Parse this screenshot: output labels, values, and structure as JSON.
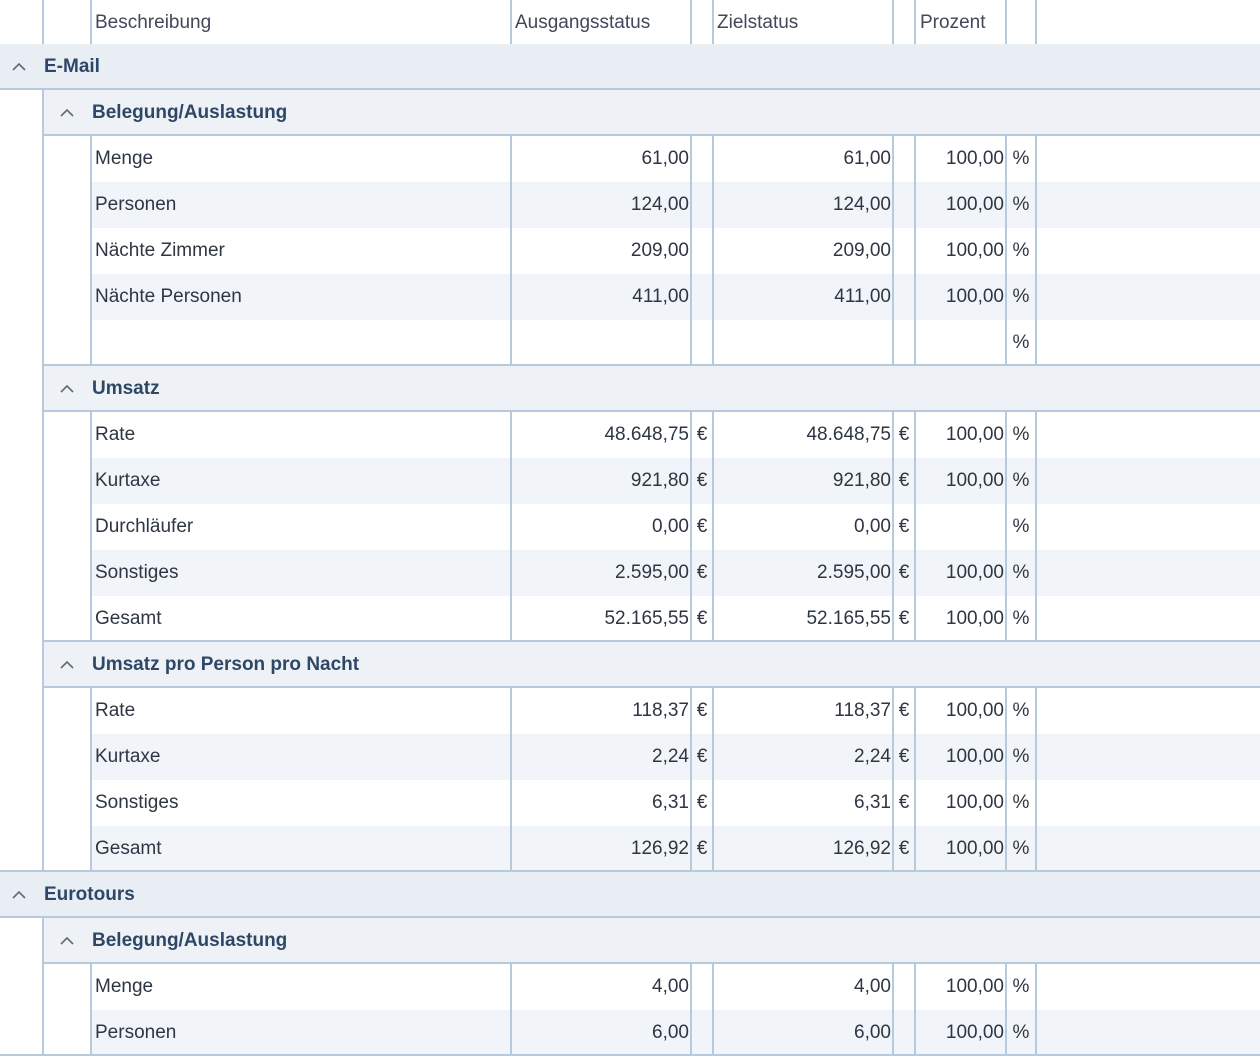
{
  "header": {
    "col_desc": "Beschreibung",
    "col_start": "Ausgangsstatus",
    "col_target": "Zielstatus",
    "col_percent": "Prozent"
  },
  "groups": [
    {
      "label": "E-Mail",
      "subgroups": [
        {
          "label": "Belegung/Auslastung",
          "rows": [
            {
              "desc": "Menge",
              "start": "61,00",
              "start_unit": "",
              "target": "61,00",
              "target_unit": "",
              "pct": "100,00",
              "pct_unit": "%"
            },
            {
              "desc": "Personen",
              "start": "124,00",
              "start_unit": "",
              "target": "124,00",
              "target_unit": "",
              "pct": "100,00",
              "pct_unit": "%"
            },
            {
              "desc": "Nächte Zimmer",
              "start": "209,00",
              "start_unit": "",
              "target": "209,00",
              "target_unit": "",
              "pct": "100,00",
              "pct_unit": "%"
            },
            {
              "desc": "Nächte Personen",
              "start": "411,00",
              "start_unit": "",
              "target": "411,00",
              "target_unit": "",
              "pct": "100,00",
              "pct_unit": "%"
            },
            {
              "desc": "",
              "start": "",
              "start_unit": "",
              "target": "",
              "target_unit": "",
              "pct": "",
              "pct_unit": "%"
            }
          ]
        },
        {
          "label": "Umsatz",
          "rows": [
            {
              "desc": "Rate",
              "start": "48.648,75",
              "start_unit": "€",
              "target": "48.648,75",
              "target_unit": "€",
              "pct": "100,00",
              "pct_unit": "%"
            },
            {
              "desc": "Kurtaxe",
              "start": "921,80",
              "start_unit": "€",
              "target": "921,80",
              "target_unit": "€",
              "pct": "100,00",
              "pct_unit": "%"
            },
            {
              "desc": "Durchläufer",
              "start": "0,00",
              "start_unit": "€",
              "target": "0,00",
              "target_unit": "€",
              "pct": "",
              "pct_unit": "%"
            },
            {
              "desc": "Sonstiges",
              "start": "2.595,00",
              "start_unit": "€",
              "target": "2.595,00",
              "target_unit": "€",
              "pct": "100,00",
              "pct_unit": "%"
            },
            {
              "desc": "Gesamt",
              "start": "52.165,55",
              "start_unit": "€",
              "target": "52.165,55",
              "target_unit": "€",
              "pct": "100,00",
              "pct_unit": "%"
            }
          ]
        },
        {
          "label": "Umsatz pro Person pro Nacht",
          "rows": [
            {
              "desc": "Rate",
              "start": "118,37",
              "start_unit": "€",
              "target": "118,37",
              "target_unit": "€",
              "pct": "100,00",
              "pct_unit": "%"
            },
            {
              "desc": "Kurtaxe",
              "start": "2,24",
              "start_unit": "€",
              "target": "2,24",
              "target_unit": "€",
              "pct": "100,00",
              "pct_unit": "%"
            },
            {
              "desc": "Sonstiges",
              "start": "6,31",
              "start_unit": "€",
              "target": "6,31",
              "target_unit": "€",
              "pct": "100,00",
              "pct_unit": "%"
            },
            {
              "desc": "Gesamt",
              "start": "126,92",
              "start_unit": "€",
              "target": "126,92",
              "target_unit": "€",
              "pct": "100,00",
              "pct_unit": "%"
            }
          ]
        }
      ]
    },
    {
      "label": "Eurotours",
      "subgroups": [
        {
          "label": "Belegung/Auslastung",
          "rows": [
            {
              "desc": "Menge",
              "start": "4,00",
              "start_unit": "",
              "target": "4,00",
              "target_unit": "",
              "pct": "100,00",
              "pct_unit": "%"
            },
            {
              "desc": "Personen",
              "start": "6,00",
              "start_unit": "",
              "target": "6,00",
              "target_unit": "",
              "pct": "100,00",
              "pct_unit": "%"
            }
          ]
        }
      ]
    }
  ]
}
